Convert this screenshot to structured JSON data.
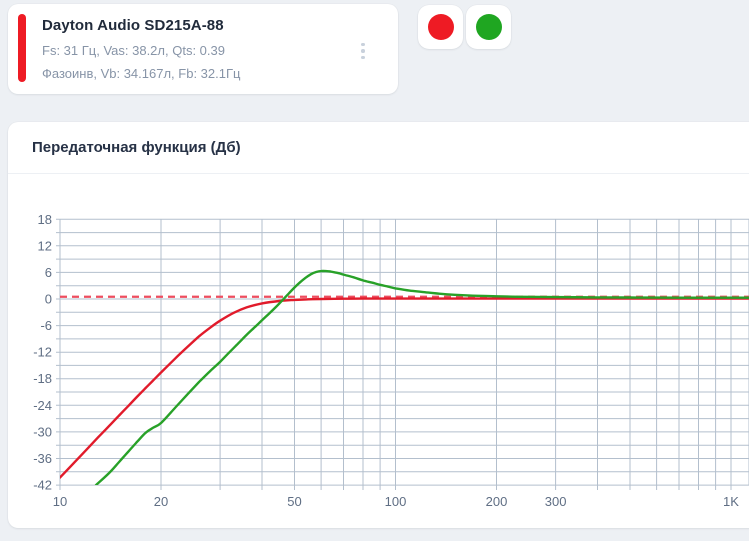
{
  "speaker_card": {
    "title": "Dayton Audio SD215A-88",
    "line1": "Fs: 31 Гц, Vas: 38.2л, Qts: 0.39",
    "line2": "Фазоинв, Vb: 34.167л, Fb: 32.1Гц",
    "accent_color": "#ee1b24"
  },
  "toggles": {
    "red": {
      "color": "#ee1b24"
    },
    "green": {
      "color": "#1fa621"
    }
  },
  "icons": {
    "menu": "kebab-vertical-icon"
  },
  "chart": {
    "title": "Передаточная функция (Дб)"
  },
  "chart_data": {
    "type": "line",
    "title": "Передаточная функция (Дб)",
    "x_axis": {
      "scale": "log",
      "min": 10,
      "max": 1130,
      "unit": "Hz",
      "minor_gridlines": [
        10,
        20,
        30,
        40,
        50,
        60,
        70,
        80,
        90,
        100,
        200,
        300,
        400,
        500,
        600,
        700,
        800,
        900,
        1000
      ],
      "labeled_ticks": [
        {
          "f": 10,
          "label": "10"
        },
        {
          "f": 20,
          "label": "20"
        },
        {
          "f": 50,
          "label": "50"
        },
        {
          "f": 100,
          "label": "100"
        },
        {
          "f": 200,
          "label": "200"
        },
        {
          "f": 300,
          "label": "300"
        },
        {
          "f": 1000,
          "label": "1K"
        }
      ]
    },
    "y_axis": {
      "min": -42,
      "max": 18,
      "grid_step": 3,
      "label_step": 6,
      "unit": "Дб"
    },
    "grid_color": "#b3bfcd",
    "tick_label_color": "#5f6e84",
    "reference_line": {
      "value": 0.5,
      "style": "dashed",
      "color": "#ee4d5f"
    },
    "series": [
      {
        "name": "red",
        "color": "#e11b2b",
        "points": [
          [
            10,
            -40.3
          ],
          [
            11,
            -37.0
          ],
          [
            12,
            -34.0
          ],
          [
            13,
            -31.2
          ],
          [
            14,
            -28.7
          ],
          [
            15,
            -26.3
          ],
          [
            16,
            -24.1
          ],
          [
            17,
            -22.0
          ],
          [
            18,
            -20.1
          ],
          [
            19,
            -18.3
          ],
          [
            20,
            -16.6
          ],
          [
            22,
            -13.5
          ],
          [
            24,
            -10.8
          ],
          [
            26,
            -8.4
          ],
          [
            28,
            -6.5
          ],
          [
            30,
            -4.9
          ],
          [
            33,
            -3.1
          ],
          [
            36,
            -1.9
          ],
          [
            40,
            -1.0
          ],
          [
            45,
            -0.45
          ],
          [
            50,
            -0.2
          ],
          [
            55,
            -0.07
          ],
          [
            60,
            0.0
          ],
          [
            70,
            0.06
          ],
          [
            80,
            0.08
          ],
          [
            100,
            0.1
          ],
          [
            150,
            0.1
          ],
          [
            200,
            0.1
          ],
          [
            300,
            0.1
          ],
          [
            500,
            0.1
          ],
          [
            800,
            0.1
          ],
          [
            1130,
            0.1
          ]
        ]
      },
      {
        "name": "green",
        "color": "#28a128",
        "points": [
          [
            12.8,
            -42
          ],
          [
            14,
            -39.3
          ],
          [
            15,
            -36.8
          ],
          [
            16,
            -34.4
          ],
          [
            17,
            -32.2
          ],
          [
            18,
            -30.2
          ],
          [
            19,
            -29.0
          ],
          [
            20,
            -28.0
          ],
          [
            22,
            -24.6
          ],
          [
            24,
            -21.5
          ],
          [
            26,
            -18.7
          ],
          [
            28,
            -16.3
          ],
          [
            30,
            -14.2
          ],
          [
            32,
            -12.0
          ],
          [
            34,
            -10.0
          ],
          [
            36,
            -8.1
          ],
          [
            38,
            -6.4
          ],
          [
            40,
            -4.8
          ],
          [
            42,
            -3.3
          ],
          [
            44,
            -1.8
          ],
          [
            46,
            -0.3
          ],
          [
            48,
            1.2
          ],
          [
            50,
            2.6
          ],
          [
            52,
            3.8
          ],
          [
            54,
            4.8
          ],
          [
            56,
            5.6
          ],
          [
            58,
            6.1
          ],
          [
            60,
            6.3
          ],
          [
            62,
            6.3
          ],
          [
            64,
            6.2
          ],
          [
            66,
            6.0
          ],
          [
            68,
            5.8
          ],
          [
            70,
            5.5
          ],
          [
            75,
            4.9
          ],
          [
            80,
            4.2
          ],
          [
            85,
            3.7
          ],
          [
            90,
            3.2
          ],
          [
            95,
            2.8
          ],
          [
            100,
            2.4
          ],
          [
            110,
            1.9
          ],
          [
            120,
            1.6
          ],
          [
            135,
            1.2
          ],
          [
            150,
            0.95
          ],
          [
            170,
            0.75
          ],
          [
            200,
            0.6
          ],
          [
            240,
            0.5
          ],
          [
            300,
            0.42
          ],
          [
            400,
            0.36
          ],
          [
            500,
            0.33
          ],
          [
            700,
            0.3
          ],
          [
            900,
            0.3
          ],
          [
            1130,
            0.3
          ]
        ]
      }
    ]
  }
}
